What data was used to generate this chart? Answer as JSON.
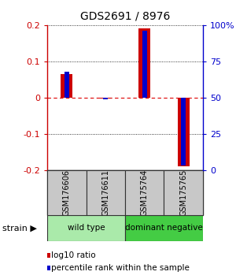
{
  "title": "GDS2691 / 8976",
  "samples": [
    "GSM176606",
    "GSM176611",
    "GSM175764",
    "GSM175765"
  ],
  "log10_ratio": [
    0.065,
    -0.002,
    0.19,
    -0.19
  ],
  "percentile_rank": [
    68,
    49,
    96,
    3
  ],
  "ylim_left": [
    -0.2,
    0.2
  ],
  "ylim_right": [
    0,
    100
  ],
  "yticks_left": [
    -0.2,
    -0.1,
    0.0,
    0.1,
    0.2
  ],
  "yticks_right": [
    0,
    25,
    50,
    75,
    100
  ],
  "ytick_labels_left": [
    "-0.2",
    "-0.1",
    "0",
    "0.1",
    "0.2"
  ],
  "ytick_labels_right": [
    "0",
    "25",
    "50",
    "75",
    "100%"
  ],
  "groups": [
    {
      "label": "wild type",
      "samples": [
        0,
        1
      ],
      "color": "#aaeaaa"
    },
    {
      "label": "dominant negative",
      "samples": [
        2,
        3
      ],
      "color": "#44cc44"
    }
  ],
  "red_bar_width": 0.3,
  "blue_bar_width": 0.12,
  "red_color": "#cc0000",
  "blue_color": "#0000cc",
  "zero_line_color": "#dd0000",
  "bg_color": "#ffffff",
  "label_area_color": "#c8c8c8",
  "label_border_color": "#333333",
  "legend_red_label": "log10 ratio",
  "legend_blue_label": "percentile rank within the sample"
}
